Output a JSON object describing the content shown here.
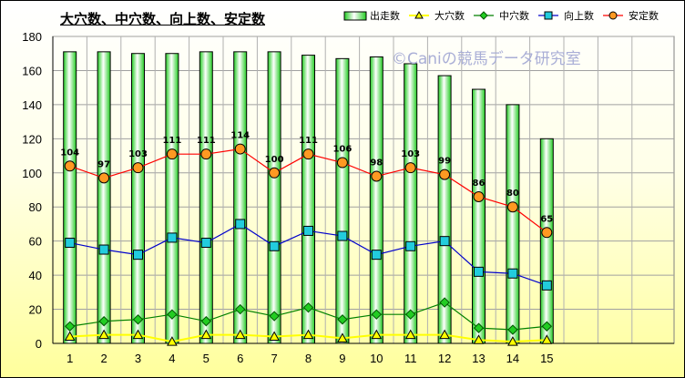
{
  "chart_data": {
    "type": "bar",
    "title": "大穴数、中穴数、向上数、安定数",
    "watermark": "©Caniの競馬データ研究室",
    "categories": [
      "1",
      "2",
      "3",
      "4",
      "5",
      "6",
      "7",
      "8",
      "9",
      "10",
      "11",
      "12",
      "13",
      "14",
      "15"
    ],
    "ylim": [
      0,
      180
    ],
    "yticks": [
      "0",
      "20",
      "40",
      "60",
      "80",
      "100",
      "120",
      "140",
      "160",
      "180"
    ],
    "grid": true,
    "legend_position": "top",
    "series": [
      {
        "name": "出走数",
        "type": "bar",
        "color": "#33dd33",
        "values": [
          171,
          171,
          170,
          170,
          171,
          171,
          171,
          169,
          167,
          168,
          164,
          157,
          149,
          140,
          120
        ]
      },
      {
        "name": "大穴数",
        "type": "line",
        "marker": "triangle",
        "color": "#ffff00",
        "values": [
          4,
          5,
          5,
          1,
          5,
          5,
          4,
          5,
          3,
          5,
          5,
          5,
          2,
          1,
          2
        ]
      },
      {
        "name": "中穴数",
        "type": "line",
        "marker": "diamond",
        "color": "#008000",
        "values": [
          10,
          13,
          14,
          17,
          13,
          20,
          16,
          21,
          14,
          17,
          17,
          24,
          9,
          8,
          10
        ]
      },
      {
        "name": "向上数",
        "type": "line",
        "marker": "square",
        "color": "#0000cc",
        "values": [
          59,
          55,
          52,
          62,
          59,
          70,
          57,
          66,
          63,
          52,
          57,
          60,
          42,
          41,
          34
        ]
      },
      {
        "name": "安定数",
        "type": "line",
        "marker": "circle",
        "color": "#ff0000",
        "values": [
          104,
          97,
          103,
          111,
          111,
          114,
          100,
          111,
          106,
          98,
          103,
          99,
          86,
          80,
          65
        ]
      }
    ]
  }
}
